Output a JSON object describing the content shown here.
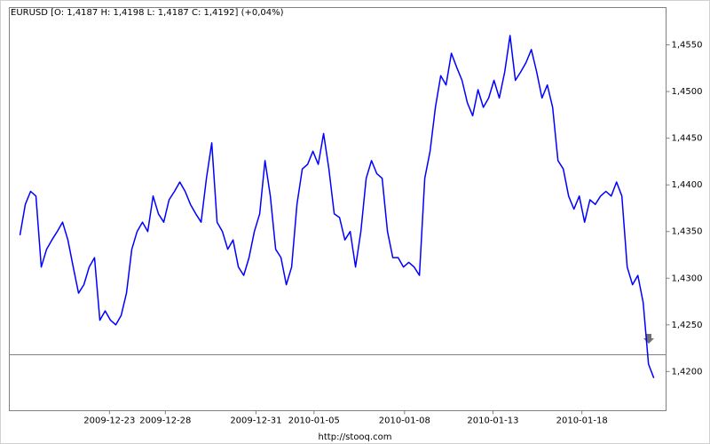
{
  "chart_data": {
    "type": "line",
    "title": "EURUSD [O: 1,4187  H: 1,4198  L: 1,4187  C: 1,4192] (+0,04%)",
    "footer": "http://stooq.com",
    "series": [
      {
        "name": "EURUSD",
        "color": "#0000ff",
        "values": [
          1.4346,
          1.4379,
          1.4393,
          1.4388,
          1.4312,
          1.4331,
          1.4341,
          1.435,
          1.436,
          1.4341,
          1.4312,
          1.4284,
          1.4293,
          1.4312,
          1.4322,
          1.4255,
          1.4265,
          1.4255,
          1.425,
          1.426,
          1.4284,
          1.4331,
          1.435,
          1.436,
          1.435,
          1.4388,
          1.4369,
          1.436,
          1.4384,
          1.4393,
          1.4403,
          1.4393,
          1.4379,
          1.4369,
          1.436,
          1.4407,
          1.4445,
          1.436,
          1.435,
          1.4331,
          1.4341,
          1.4312,
          1.4303,
          1.4322,
          1.435,
          1.4369,
          1.4426,
          1.4388,
          1.4331,
          1.4322,
          1.4293,
          1.4312,
          1.4379,
          1.4417,
          1.4422,
          1.4436,
          1.4422,
          1.4455,
          1.4417,
          1.4369,
          1.4365,
          1.4341,
          1.435,
          1.4312,
          1.435,
          1.4407,
          1.4426,
          1.4412,
          1.4407,
          1.435,
          1.4322,
          1.4322,
          1.4312,
          1.4317,
          1.4312,
          1.4303,
          1.4407,
          1.4436,
          1.4483,
          1.4517,
          1.4507,
          1.4541,
          1.4526,
          1.4512,
          1.4488,
          1.4474,
          1.4502,
          1.4483,
          1.4493,
          1.4512,
          1.4493,
          1.4521,
          1.456,
          1.4512,
          1.4521,
          1.4531,
          1.4545,
          1.4521,
          1.4493,
          1.4507,
          1.4483,
          1.4426,
          1.4417,
          1.4388,
          1.4374,
          1.4388,
          1.436,
          1.4384,
          1.4379,
          1.4388,
          1.4393,
          1.4388,
          1.4403,
          1.4388,
          1.4312,
          1.4293,
          1.4303,
          1.4274,
          1.4208,
          1.4193
        ]
      }
    ],
    "reference_line": {
      "value": 1.4218,
      "color": "#808080"
    },
    "xlim": [
      -2,
      121.3
    ],
    "xticks": [
      {
        "value": 16.8,
        "label": "2009-12-23"
      },
      {
        "value": 27.3,
        "label": "2009-12-28"
      },
      {
        "value": 44.3,
        "label": "2009-12-31"
      },
      {
        "value": 55.2,
        "label": "2010-01-05"
      },
      {
        "value": 72.2,
        "label": "2010-01-08"
      },
      {
        "value": 88.8,
        "label": "2010-01-13"
      },
      {
        "value": 105.5,
        "label": "2010-01-18"
      }
    ],
    "ylim": [
      1.4158,
      1.459
    ],
    "yticks": [
      {
        "value": 1.42,
        "label": "1,4200"
      },
      {
        "value": 1.425,
        "label": "1,4250"
      },
      {
        "value": 1.43,
        "label": "1,4300"
      },
      {
        "value": 1.435,
        "label": "1,4350"
      },
      {
        "value": 1.44,
        "label": "1,4400"
      },
      {
        "value": 1.445,
        "label": "1,4450"
      },
      {
        "value": 1.45,
        "label": "1,4500"
      },
      {
        "value": 1.455,
        "label": "1,4550"
      }
    ],
    "grid": false
  }
}
